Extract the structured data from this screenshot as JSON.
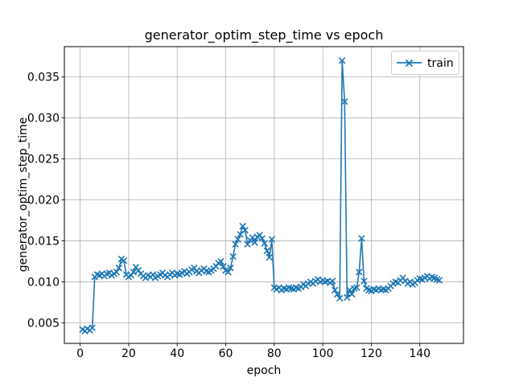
{
  "window": {
    "background": "#ffffff"
  },
  "chart_data": {
    "type": "line",
    "title": "generator_optim_step_time vs epoch",
    "xlabel": "epoch",
    "ylabel": "generator_optim_step_time",
    "grid": true,
    "legend_position": "upper right",
    "legend": [
      {
        "label": "train",
        "color": "#1f77b4",
        "marker": "x"
      }
    ],
    "x_ticks": [
      0,
      20,
      40,
      60,
      80,
      100,
      120,
      140
    ],
    "y_ticks": [
      0.005,
      0.01,
      0.015,
      0.02,
      0.025,
      0.03,
      0.035
    ],
    "xlim": [
      -6.5,
      158
    ],
    "ylim": [
      0.0025,
      0.0387
    ],
    "colors": {
      "line": "#1f77b4",
      "grid": "#b0b0b0",
      "spine": "#000000",
      "legend_border": "#cccccc"
    },
    "series": [
      {
        "name": "train",
        "color": "#1f77b4",
        "marker": "x",
        "x": [
          1,
          2,
          3,
          4,
          5,
          6,
          7,
          8,
          9,
          10,
          11,
          12,
          13,
          14,
          15,
          16,
          17,
          18,
          19,
          20,
          21,
          22,
          23,
          24,
          25,
          26,
          27,
          28,
          29,
          30,
          31,
          32,
          33,
          34,
          35,
          36,
          37,
          38,
          39,
          40,
          41,
          42,
          43,
          44,
          45,
          46,
          47,
          48,
          49,
          50,
          51,
          52,
          53,
          54,
          55,
          56,
          57,
          58,
          59,
          60,
          61,
          62,
          63,
          64,
          65,
          66,
          67,
          68,
          69,
          70,
          71,
          72,
          73,
          74,
          75,
          76,
          77,
          78,
          79,
          80,
          81,
          82,
          83,
          84,
          85,
          86,
          87,
          88,
          89,
          90,
          91,
          92,
          93,
          94,
          95,
          96,
          97,
          98,
          99,
          100,
          101,
          102,
          103,
          104,
          105,
          106,
          107,
          108,
          109,
          110,
          111,
          112,
          113,
          114,
          115,
          116,
          117,
          118,
          119,
          120,
          121,
          122,
          123,
          124,
          125,
          126,
          127,
          128,
          129,
          130,
          131,
          132,
          133,
          134,
          135,
          136,
          137,
          138,
          139,
          140,
          141,
          142,
          143,
          144,
          145,
          146,
          147,
          148
        ],
        "y": [
          0.0042,
          0.004,
          0.0043,
          0.0041,
          0.0044,
          0.0106,
          0.0109,
          0.0108,
          0.011,
          0.0107,
          0.011,
          0.0111,
          0.0108,
          0.011,
          0.0112,
          0.0117,
          0.0128,
          0.0126,
          0.0109,
          0.0106,
          0.0108,
          0.0112,
          0.0118,
          0.0114,
          0.011,
          0.0107,
          0.0105,
          0.0108,
          0.0106,
          0.0109,
          0.0105,
          0.0107,
          0.0109,
          0.0111,
          0.0108,
          0.0106,
          0.0109,
          0.0111,
          0.0108,
          0.011,
          0.0109,
          0.0111,
          0.0113,
          0.011,
          0.0112,
          0.0115,
          0.0117,
          0.0113,
          0.0111,
          0.0114,
          0.0116,
          0.0113,
          0.0112,
          0.0114,
          0.0116,
          0.0119,
          0.0123,
          0.0125,
          0.0119,
          0.0114,
          0.0112,
          0.0117,
          0.0131,
          0.0146,
          0.0152,
          0.0158,
          0.0168,
          0.0163,
          0.0146,
          0.0151,
          0.0154,
          0.0148,
          0.0155,
          0.0157,
          0.0153,
          0.0147,
          0.0138,
          0.013,
          0.0152,
          0.0093,
          0.0091,
          0.0093,
          0.009,
          0.0092,
          0.0091,
          0.0093,
          0.0092,
          0.0091,
          0.0093,
          0.0092,
          0.0094,
          0.0097,
          0.0095,
          0.0098,
          0.01,
          0.0098,
          0.0101,
          0.0103,
          0.01,
          0.0102,
          0.01,
          0.0101,
          0.0099,
          0.0101,
          0.009,
          0.0085,
          0.008,
          0.037,
          0.032,
          0.0081,
          0.009,
          0.0085,
          0.0092,
          0.0093,
          0.0112,
          0.0153,
          0.0101,
          0.0092,
          0.009,
          0.0089,
          0.0091,
          0.009,
          0.0092,
          0.009,
          0.0091,
          0.009,
          0.0092,
          0.0095,
          0.0098,
          0.01,
          0.0099,
          0.0102,
          0.0105,
          0.0101,
          0.0098,
          0.01,
          0.0097,
          0.0099,
          0.0102,
          0.0104,
          0.0103,
          0.0105,
          0.0107,
          0.0104,
          0.0106,
          0.0105,
          0.0103,
          0.0102
        ]
      }
    ]
  }
}
